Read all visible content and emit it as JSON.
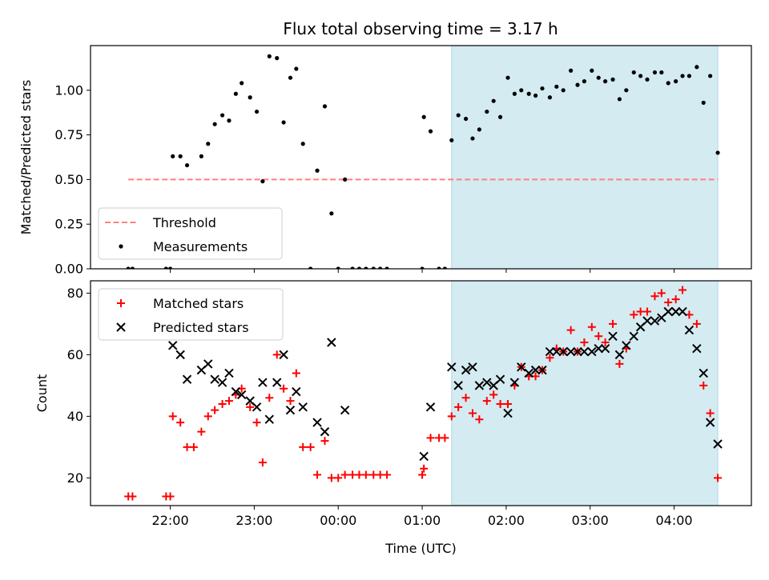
{
  "figure": {
    "title": "Flux total observing time = 3.17 h"
  },
  "colors": {
    "threshold": "#ff8080",
    "measurements": "#000000",
    "matched": "#ff0000",
    "predicted": "#000000",
    "shade": "#add8e6"
  },
  "chart_data": [
    {
      "type": "scatter",
      "ylabel": "Matched/Predicted stars",
      "xlabel": "",
      "x_unit": "hours since 00:00 UTC",
      "xlim": [
        -2.95,
        4.92
      ],
      "ylim": [
        0,
        1.25
      ],
      "yticks": [
        0.0,
        0.25,
        0.5,
        0.75,
        1.0
      ],
      "ytick_labels": [
        "0.00",
        "0.25",
        "0.50",
        "0.75",
        "1.00"
      ],
      "shaded_x_range": [
        1.35,
        4.52
      ],
      "threshold": {
        "name": "Threshold",
        "y": 0.5,
        "x_range": [
          -2.5,
          4.52
        ]
      },
      "legend": {
        "position": "lower-left",
        "entries": [
          "Threshold",
          "Measurements"
        ]
      },
      "series": [
        {
          "name": "Measurements",
          "points": [
            [
              -2.5,
              0.0
            ],
            [
              -2.45,
              0.0
            ],
            [
              -2.05,
              0.0
            ],
            [
              -2.0,
              0.0
            ],
            [
              -1.97,
              0.63
            ],
            [
              -1.88,
              0.63
            ],
            [
              -1.8,
              0.58
            ],
            [
              -1.63,
              0.63
            ],
            [
              -1.55,
              0.7
            ],
            [
              -1.47,
              0.81
            ],
            [
              -1.38,
              0.86
            ],
            [
              -1.3,
              0.83
            ],
            [
              -1.22,
              0.98
            ],
            [
              -1.15,
              1.04
            ],
            [
              -1.05,
              0.96
            ],
            [
              -0.97,
              0.88
            ],
            [
              -0.9,
              0.49
            ],
            [
              -0.82,
              1.19
            ],
            [
              -0.73,
              1.18
            ],
            [
              -0.65,
              0.82
            ],
            [
              -0.57,
              1.07
            ],
            [
              -0.5,
              1.12
            ],
            [
              -0.42,
              0.7
            ],
            [
              -0.33,
              0.0
            ],
            [
              -0.25,
              0.55
            ],
            [
              -0.16,
              0.91
            ],
            [
              -0.08,
              0.31
            ],
            [
              0.0,
              0.0
            ],
            [
              0.08,
              0.5
            ],
            [
              0.17,
              0.0
            ],
            [
              0.25,
              0.0
            ],
            [
              0.33,
              0.0
            ],
            [
              0.42,
              0.0
            ],
            [
              0.5,
              0.0
            ],
            [
              0.58,
              0.0
            ],
            [
              1.0,
              0.0
            ],
            [
              1.02,
              0.85
            ],
            [
              1.1,
              0.77
            ],
            [
              1.2,
              0.0
            ],
            [
              1.27,
              0.0
            ],
            [
              1.35,
              0.72
            ],
            [
              1.43,
              0.86
            ],
            [
              1.52,
              0.84
            ],
            [
              1.6,
              0.73
            ],
            [
              1.68,
              0.78
            ],
            [
              1.77,
              0.88
            ],
            [
              1.85,
              0.94
            ],
            [
              1.93,
              0.85
            ],
            [
              2.02,
              1.07
            ],
            [
              2.1,
              0.98
            ],
            [
              2.18,
              1.0
            ],
            [
              2.27,
              0.98
            ],
            [
              2.35,
              0.97
            ],
            [
              2.43,
              1.01
            ],
            [
              2.52,
              0.96
            ],
            [
              2.6,
              1.02
            ],
            [
              2.68,
              1.0
            ],
            [
              2.77,
              1.11
            ],
            [
              2.85,
              1.03
            ],
            [
              2.93,
              1.05
            ],
            [
              3.02,
              1.11
            ],
            [
              3.1,
              1.07
            ],
            [
              3.18,
              1.05
            ],
            [
              3.27,
              1.06
            ],
            [
              3.35,
              0.95
            ],
            [
              3.43,
              1.0
            ],
            [
              3.52,
              1.1
            ],
            [
              3.6,
              1.08
            ],
            [
              3.68,
              1.06
            ],
            [
              3.77,
              1.1
            ],
            [
              3.85,
              1.1
            ],
            [
              3.93,
              1.04
            ],
            [
              4.02,
              1.05
            ],
            [
              4.1,
              1.08
            ],
            [
              4.18,
              1.08
            ],
            [
              4.27,
              1.13
            ],
            [
              4.35,
              0.93
            ],
            [
              4.43,
              1.08
            ],
            [
              4.52,
              0.65
            ]
          ]
        }
      ]
    },
    {
      "type": "scatter",
      "ylabel": "Count",
      "xlabel": "Time (UTC)",
      "x_unit": "hours since 00:00 UTC",
      "xlim": [
        -2.95,
        4.92
      ],
      "ylim": [
        11,
        84
      ],
      "yticks": [
        20,
        40,
        60,
        80
      ],
      "ytick_labels": [
        "20",
        "40",
        "60",
        "80"
      ],
      "xticks": [
        -2,
        -1,
        0,
        1,
        2,
        3,
        4
      ],
      "xtick_labels": [
        "22:00",
        "23:00",
        "00:00",
        "01:00",
        "02:00",
        "03:00",
        "04:00"
      ],
      "shaded_x_range": [
        1.35,
        4.52
      ],
      "legend": {
        "position": "upper-left",
        "entries": [
          "Matched stars",
          "Predicted stars"
        ]
      },
      "series": [
        {
          "name": "Matched stars",
          "marker": "plus",
          "points": [
            [
              -2.5,
              14
            ],
            [
              -2.45,
              14
            ],
            [
              -2.05,
              14
            ],
            [
              -2.0,
              14
            ],
            [
              -1.97,
              40
            ],
            [
              -1.88,
              38
            ],
            [
              -1.8,
              30
            ],
            [
              -1.72,
              30
            ],
            [
              -1.63,
              35
            ],
            [
              -1.55,
              40
            ],
            [
              -1.47,
              42
            ],
            [
              -1.38,
              44
            ],
            [
              -1.3,
              45
            ],
            [
              -1.22,
              47
            ],
            [
              -1.15,
              49
            ],
            [
              -1.05,
              43
            ],
            [
              -0.97,
              38
            ],
            [
              -0.9,
              25
            ],
            [
              -0.82,
              46
            ],
            [
              -0.73,
              60
            ],
            [
              -0.65,
              49
            ],
            [
              -0.57,
              45
            ],
            [
              -0.5,
              54
            ],
            [
              -0.42,
              30
            ],
            [
              -0.33,
              30
            ],
            [
              -0.25,
              21
            ],
            [
              -0.16,
              32
            ],
            [
              -0.08,
              20
            ],
            [
              0.0,
              20
            ],
            [
              0.08,
              21
            ],
            [
              0.17,
              21
            ],
            [
              0.25,
              21
            ],
            [
              0.33,
              21
            ],
            [
              0.42,
              21
            ],
            [
              0.5,
              21
            ],
            [
              0.58,
              21
            ],
            [
              1.0,
              21
            ],
            [
              1.02,
              23
            ],
            [
              1.1,
              33
            ],
            [
              1.2,
              33
            ],
            [
              1.27,
              33
            ],
            [
              1.35,
              40
            ],
            [
              1.43,
              43
            ],
            [
              1.52,
              46
            ],
            [
              1.6,
              41
            ],
            [
              1.68,
              39
            ],
            [
              1.77,
              45
            ],
            [
              1.85,
              47
            ],
            [
              1.93,
              44
            ],
            [
              2.02,
              44
            ],
            [
              2.1,
              50
            ],
            [
              2.18,
              56
            ],
            [
              2.27,
              53
            ],
            [
              2.35,
              53
            ],
            [
              2.43,
              55
            ],
            [
              2.52,
              59
            ],
            [
              2.6,
              62
            ],
            [
              2.68,
              61
            ],
            [
              2.77,
              68
            ],
            [
              2.85,
              61
            ],
            [
              2.93,
              64
            ],
            [
              3.02,
              69
            ],
            [
              3.1,
              66
            ],
            [
              3.18,
              64
            ],
            [
              3.27,
              70
            ],
            [
              3.35,
              57
            ],
            [
              3.43,
              62
            ],
            [
              3.52,
              73
            ],
            [
              3.6,
              74
            ],
            [
              3.68,
              74
            ],
            [
              3.77,
              79
            ],
            [
              3.85,
              80
            ],
            [
              3.93,
              77
            ],
            [
              4.02,
              78
            ],
            [
              4.1,
              81
            ],
            [
              4.18,
              73
            ],
            [
              4.27,
              70
            ],
            [
              4.35,
              50
            ],
            [
              4.43,
              41
            ],
            [
              4.52,
              20
            ]
          ]
        },
        {
          "name": "Predicted stars",
          "marker": "x",
          "points": [
            [
              -1.97,
              63
            ],
            [
              -1.88,
              60
            ],
            [
              -1.8,
              52
            ],
            [
              -1.63,
              55
            ],
            [
              -1.55,
              57
            ],
            [
              -1.47,
              52
            ],
            [
              -1.38,
              51
            ],
            [
              -1.3,
              54
            ],
            [
              -1.22,
              48
            ],
            [
              -1.15,
              47
            ],
            [
              -1.05,
              45
            ],
            [
              -0.97,
              43
            ],
            [
              -0.9,
              51
            ],
            [
              -0.82,
              39
            ],
            [
              -0.73,
              51
            ],
            [
              -0.65,
              60
            ],
            [
              -0.57,
              42
            ],
            [
              -0.5,
              48
            ],
            [
              -0.42,
              43
            ],
            [
              -0.25,
              38
            ],
            [
              -0.16,
              35
            ],
            [
              -0.08,
              64
            ],
            [
              0.08,
              42
            ],
            [
              1.02,
              27
            ],
            [
              1.1,
              43
            ],
            [
              1.35,
              56
            ],
            [
              1.43,
              50
            ],
            [
              1.52,
              55
            ],
            [
              1.6,
              56
            ],
            [
              1.68,
              50
            ],
            [
              1.77,
              51
            ],
            [
              1.85,
              50
            ],
            [
              1.93,
              52
            ],
            [
              2.02,
              41
            ],
            [
              2.1,
              51
            ],
            [
              2.18,
              56
            ],
            [
              2.27,
              54
            ],
            [
              2.35,
              55
            ],
            [
              2.43,
              55
            ],
            [
              2.52,
              61
            ],
            [
              2.6,
              61
            ],
            [
              2.68,
              61
            ],
            [
              2.77,
              61
            ],
            [
              2.85,
              61
            ],
            [
              2.93,
              61
            ],
            [
              3.02,
              61
            ],
            [
              3.1,
              62
            ],
            [
              3.18,
              62
            ],
            [
              3.27,
              66
            ],
            [
              3.35,
              60
            ],
            [
              3.43,
              63
            ],
            [
              3.52,
              66
            ],
            [
              3.6,
              69
            ],
            [
              3.68,
              71
            ],
            [
              3.77,
              71
            ],
            [
              3.85,
              72
            ],
            [
              3.93,
              74
            ],
            [
              4.02,
              74
            ],
            [
              4.1,
              74
            ],
            [
              4.18,
              68
            ],
            [
              4.27,
              62
            ],
            [
              4.35,
              54
            ],
            [
              4.43,
              38
            ],
            [
              4.52,
              31
            ]
          ]
        }
      ]
    }
  ]
}
